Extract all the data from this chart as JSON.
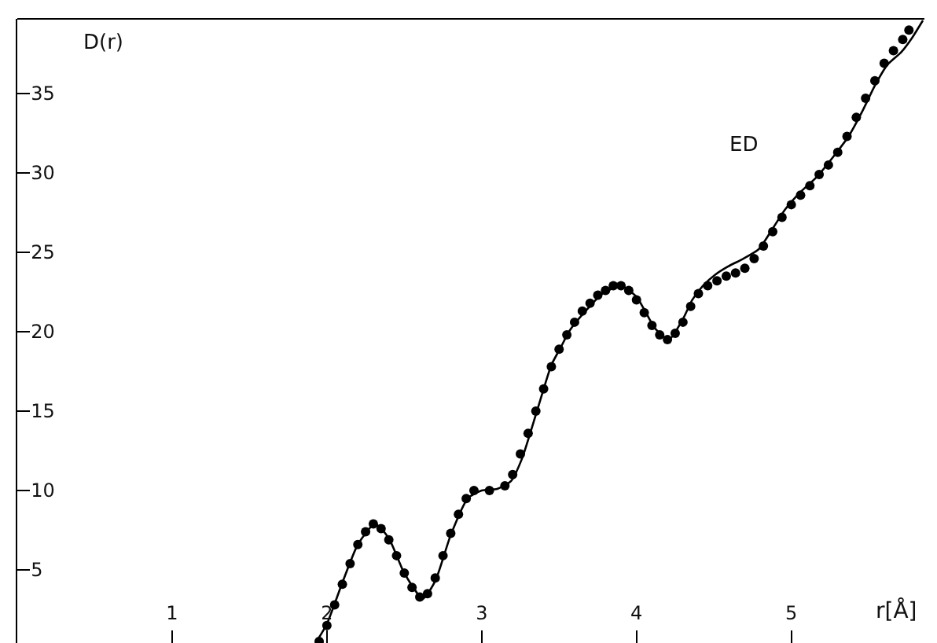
{
  "chart_data": {
    "type": "line",
    "xlabel": "r[Å]",
    "ylabel": "D(r)",
    "xlim": [
      0,
      5.86
    ],
    "ylim": [
      0.4,
      39.7
    ],
    "xticks": [
      1,
      2,
      3,
      4,
      5
    ],
    "yticks": [
      5,
      10,
      15,
      20,
      25,
      30,
      35
    ],
    "grid": false,
    "series": [
      {
        "color": "#000000",
        "line_style": "solid",
        "marker": "none",
        "x": [
          1.94,
          2.0,
          2.1,
          2.2,
          2.31,
          2.4,
          2.5,
          2.62,
          2.7,
          2.8,
          2.91,
          3.0,
          3.1,
          3.19,
          3.26,
          3.36,
          3.45,
          3.51,
          3.57,
          3.68,
          3.78,
          3.9,
          4.0,
          4.05,
          4.12,
          4.21,
          4.3,
          4.36,
          4.43,
          4.51,
          4.59,
          4.69,
          4.79,
          4.88,
          4.96,
          5.06,
          5.17,
          5.27,
          5.37,
          5.46,
          5.54,
          5.62,
          5.71,
          5.78,
          5.85
        ],
        "values": [
          0.6,
          1.6,
          4.2,
          6.6,
          7.9,
          7.0,
          4.8,
          3.2,
          4.3,
          7.2,
          9.5,
          10.0,
          10.1,
          10.6,
          12.0,
          15.1,
          17.9,
          19.0,
          20.1,
          21.4,
          22.4,
          22.9,
          22.2,
          21.4,
          20.2,
          19.5,
          20.8,
          22.0,
          22.9,
          23.6,
          24.1,
          24.6,
          25.2,
          26.5,
          27.7,
          28.8,
          29.8,
          31.0,
          32.3,
          33.9,
          35.5,
          36.8,
          37.6,
          38.5,
          39.6
        ]
      },
      {
        "type": "scatter",
        "color": "#000000",
        "marker": "circle",
        "x": [
          1.95,
          2.0,
          2.05,
          2.1,
          2.15,
          2.2,
          2.25,
          2.3,
          2.35,
          2.4,
          2.45,
          2.5,
          2.55,
          2.6,
          2.65,
          2.7,
          2.75,
          2.8,
          2.85,
          2.9,
          2.95,
          3.05,
          3.15,
          3.2,
          3.25,
          3.3,
          3.35,
          3.4,
          3.45,
          3.5,
          3.55,
          3.6,
          3.65,
          3.7,
          3.75,
          3.8,
          3.85,
          3.9,
          3.95,
          4.0,
          4.05,
          4.1,
          4.15,
          4.2,
          4.25,
          4.3,
          4.35,
          4.4,
          4.46,
          4.52,
          4.58,
          4.64,
          4.7,
          4.76,
          4.82,
          4.88,
          4.94,
          5.0,
          5.06,
          5.12,
          5.18,
          5.24,
          5.3,
          5.36,
          5.42,
          5.48,
          5.54,
          5.6,
          5.66,
          5.72,
          5.76
        ],
        "values": [
          0.5,
          1.5,
          2.8,
          4.1,
          5.4,
          6.6,
          7.4,
          7.9,
          7.6,
          6.9,
          5.9,
          4.8,
          3.9,
          3.3,
          3.5,
          4.5,
          5.9,
          7.3,
          8.5,
          9.5,
          10.0,
          10.0,
          10.3,
          11.0,
          12.3,
          13.6,
          15.0,
          16.4,
          17.8,
          18.9,
          19.8,
          20.6,
          21.3,
          21.8,
          22.3,
          22.6,
          22.9,
          22.9,
          22.6,
          22.0,
          21.2,
          20.4,
          19.8,
          19.5,
          19.9,
          20.6,
          21.6,
          22.4,
          22.9,
          23.2,
          23.5,
          23.7,
          24.0,
          24.6,
          25.4,
          26.3,
          27.2,
          28.0,
          28.6,
          29.2,
          29.9,
          30.5,
          31.3,
          32.3,
          33.5,
          34.7,
          35.8,
          36.9,
          37.7,
          38.4,
          39.0
        ]
      }
    ],
    "annotations": [
      "ED"
    ]
  }
}
